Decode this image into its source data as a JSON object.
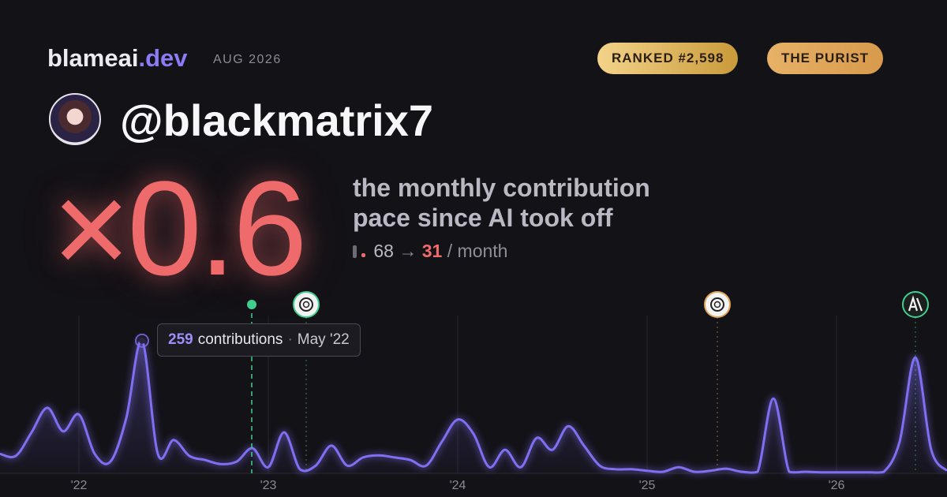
{
  "header": {
    "brand": "blameai",
    "brand_tld": ".dev",
    "date": "AUG 2026",
    "rank_badge": "RANKED #2,598",
    "archetype_badge": "THE PURIST"
  },
  "profile": {
    "handle": "@blackmatrix7"
  },
  "headline": {
    "multiplier": "×0.6",
    "description_line1": "the monthly contribution",
    "description_line2": "pace since AI took off",
    "before": "68",
    "arrow": "→",
    "after": "31",
    "unit": "/ month"
  },
  "tooltip": {
    "label": "contributions",
    "separator": "·",
    "date": "May '22"
  },
  "chart_data": {
    "type": "line",
    "categories": [
      null,
      null,
      null,
      null,
      null,
      "'22",
      null,
      null,
      null,
      null,
      null,
      null,
      null,
      null,
      null,
      null,
      null,
      "'23",
      null,
      null,
      null,
      null,
      null,
      null,
      null,
      null,
      null,
      null,
      null,
      "'24",
      null,
      null,
      null,
      null,
      null,
      null,
      null,
      null,
      null,
      null,
      null,
      "'25",
      null,
      null,
      null,
      null,
      null,
      null,
      null,
      null,
      null,
      null,
      null,
      "'26",
      null,
      null,
      null,
      null,
      null,
      null,
      null
    ],
    "values": [
      38,
      34,
      80,
      128,
      82,
      115,
      38,
      23,
      108,
      259,
      38,
      65,
      34,
      26,
      18,
      23,
      49,
      12,
      80,
      8,
      15,
      54,
      15,
      31,
      35,
      31,
      26,
      15,
      62,
      105,
      77,
      12,
      46,
      12,
      69,
      46,
      92,
      54,
      15,
      8,
      8,
      5,
      3,
      12,
      3,
      5,
      9,
      3,
      3,
      146,
      3,
      3,
      2,
      2,
      2,
      2,
      3,
      62,
      226,
      46,
      5
    ],
    "color": "#7f6ff2",
    "ylim": [
      0,
      308
    ],
    "grid": true
  }
}
